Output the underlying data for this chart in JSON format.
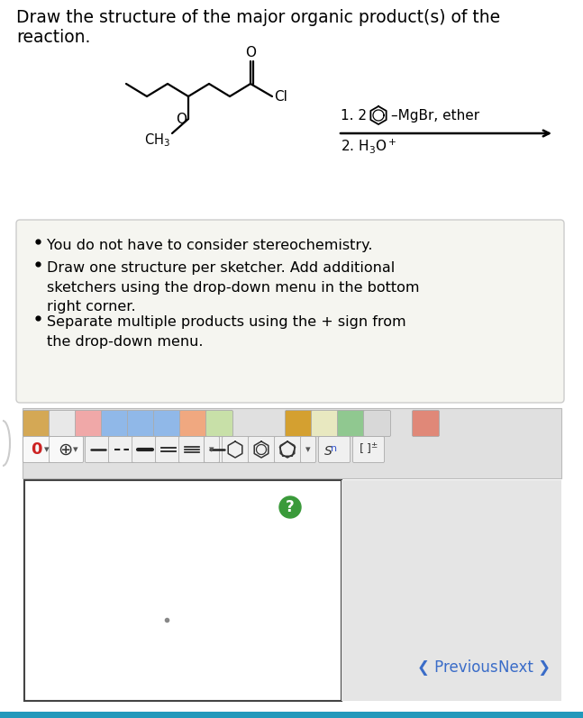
{
  "bg_color": "#ffffff",
  "title_line1": "Draw the structure of the major organic product(s) of the",
  "title_line2": "reaction.",
  "title_fontsize": 13.5,
  "bullet_box_color": "#f5f5f0",
  "bullet_box_border": "#cccccc",
  "bullet_fontsize": 11.5,
  "nav_prev": "❮ Previous",
  "nav_next": "Next ❯",
  "nav_color": "#3a6cc8",
  "bottom_bar_color": "#2299bb",
  "question_mark_bg": "#3a9a3a",
  "mol_lw": 1.6,
  "arrow_lw": 1.8,
  "cond1": "1. 2",
  "cond2": "-MgBr, ether",
  "cond3": "2. H",
  "cond3_sub": "3",
  "cond3_end": "O",
  "toolbar_bg": "#e0e0e0",
  "icon_bg": "#f0f0f0",
  "icon_border": "#aaaaaa"
}
